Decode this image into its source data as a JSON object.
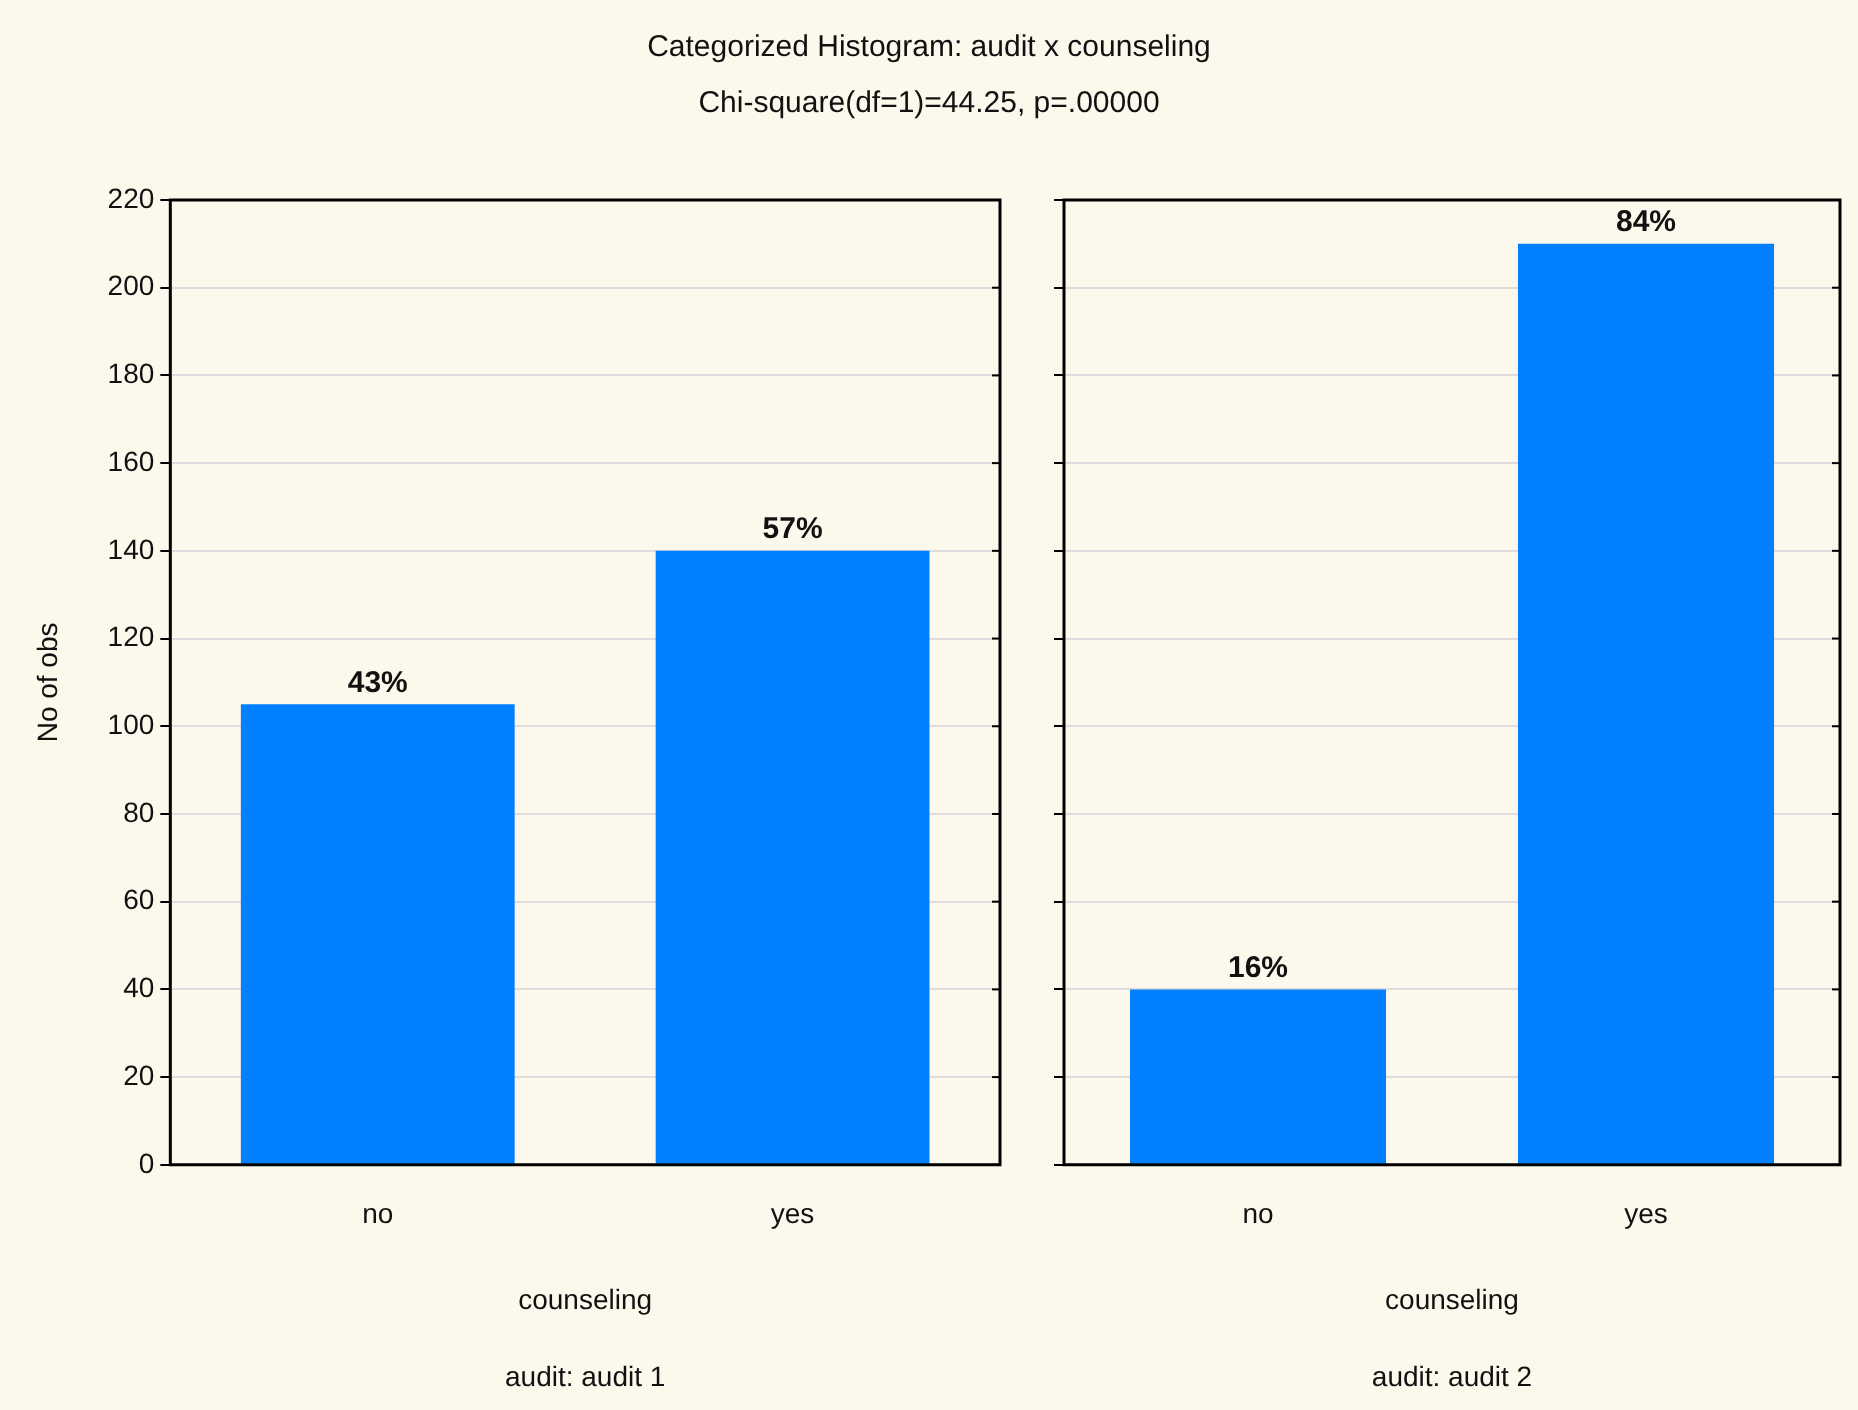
{
  "chart_data": [
    {
      "type": "bar",
      "title": "Categorized Histogram: audit x counseling",
      "subtitle": "Chi-square(df=1)=44.25, p=.00000",
      "xlabel": "counseling",
      "ylabel": "No of obs",
      "annotations": [
        "audit: audit 1",
        {
          "text": "43%",
          "x": "no",
          "y": 105
        },
        {
          "text": "57%",
          "x": "yes",
          "y": 140
        }
      ],
      "categories": [
        "no",
        "yes"
      ],
      "values": [
        105,
        140
      ],
      "color": "#0080ff",
      "ylim": [
        0,
        220
      ],
      "yticks": [
        0,
        20,
        40,
        60,
        80,
        100,
        120,
        140,
        160,
        180,
        200,
        220
      ],
      "grid": "y"
    },
    {
      "type": "bar",
      "xlabel": "counseling",
      "annotations": [
        "audit: audit 2",
        {
          "text": "16%",
          "x": "no",
          "y": 40
        },
        {
          "text": "84%",
          "x": "yes",
          "y": 210
        }
      ],
      "categories": [
        "no",
        "yes"
      ],
      "values": [
        40,
        210
      ],
      "color": "#0080ff",
      "ylim": [
        0,
        220
      ],
      "yticks": [
        0,
        20,
        40,
        60,
        80,
        100,
        120,
        140,
        160,
        180,
        200,
        220
      ],
      "grid": "y",
      "tick_labels": "x"
    }
  ]
}
